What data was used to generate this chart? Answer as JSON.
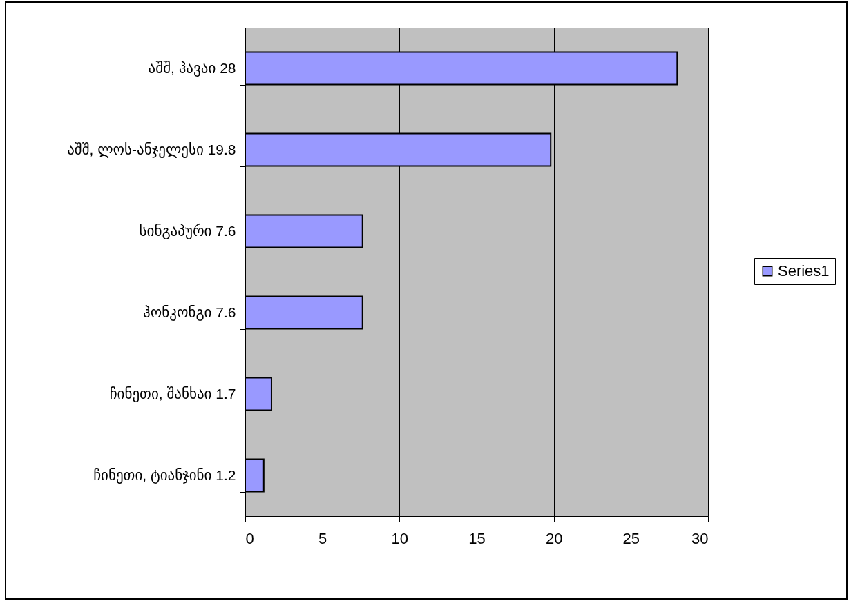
{
  "chart_data": {
    "type": "bar",
    "orientation": "horizontal",
    "categories": [
      "აშშ, ჰავაი 28",
      "აშშ, ლოს-ანჯელესი 19.8",
      "სინგაპური 7.6",
      "ჰონკონგი 7.6",
      "ჩინეთი, შანხაი 1.7",
      "ჩინეთი, ტიანჯინი 1.2"
    ],
    "series": [
      {
        "name": "Series1",
        "color": "#9999ff",
        "values": [
          28,
          19.8,
          7.6,
          7.6,
          1.7,
          1.2
        ]
      }
    ],
    "xlim": [
      0,
      30
    ],
    "xticks": [
      0,
      5,
      10,
      15,
      20,
      25,
      30
    ],
    "grid": "x",
    "legend": "right"
  }
}
